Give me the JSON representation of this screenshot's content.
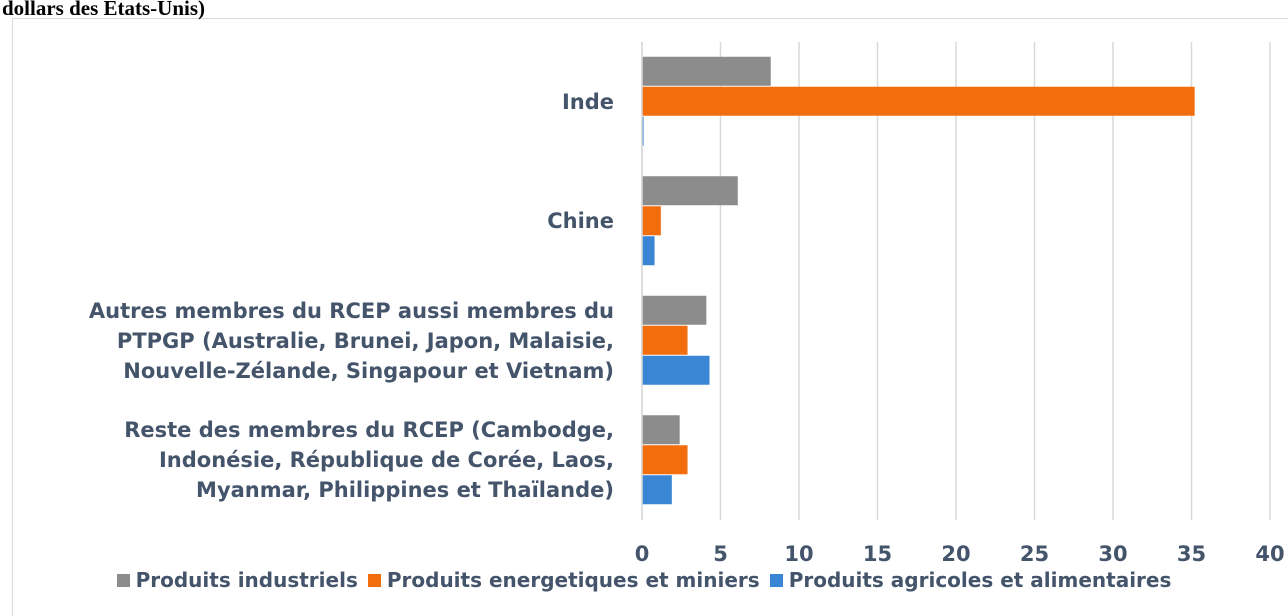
{
  "chart_data": {
    "type": "barh",
    "title": "dollars des États-Unis)",
    "categories": [
      "Inde",
      "Chine",
      "Autres membres du RCEP aussi membres du PTPGP (Australie, Brunei, Japon, Malaisie, Nouvelle-Zélande, Singapour et Vietnam)",
      "Reste des membres du RCEP (Cambodge, Indonésie, République de Corée, Laos, Myanmar, Philippines et Thaïlande)"
    ],
    "series": [
      {
        "name": "Produits industriels",
        "color": "#8c8c8c",
        "values": [
          8.2,
          6.1,
          4.1,
          2.4
        ]
      },
      {
        "name": "Produits energetiques et miniers",
        "color": "#f26d0b",
        "values": [
          35.2,
          1.2,
          2.9,
          2.9
        ]
      },
      {
        "name": "Produits agricoles et alimentaires",
        "color": "#3a86d4",
        "values": [
          0.1,
          0.8,
          4.3,
          1.9
        ]
      }
    ],
    "xlim": [
      0,
      40
    ],
    "xticks": [
      0,
      5,
      10,
      15,
      20,
      25,
      30,
      35,
      40
    ],
    "grid": true,
    "legend": "bottom"
  }
}
